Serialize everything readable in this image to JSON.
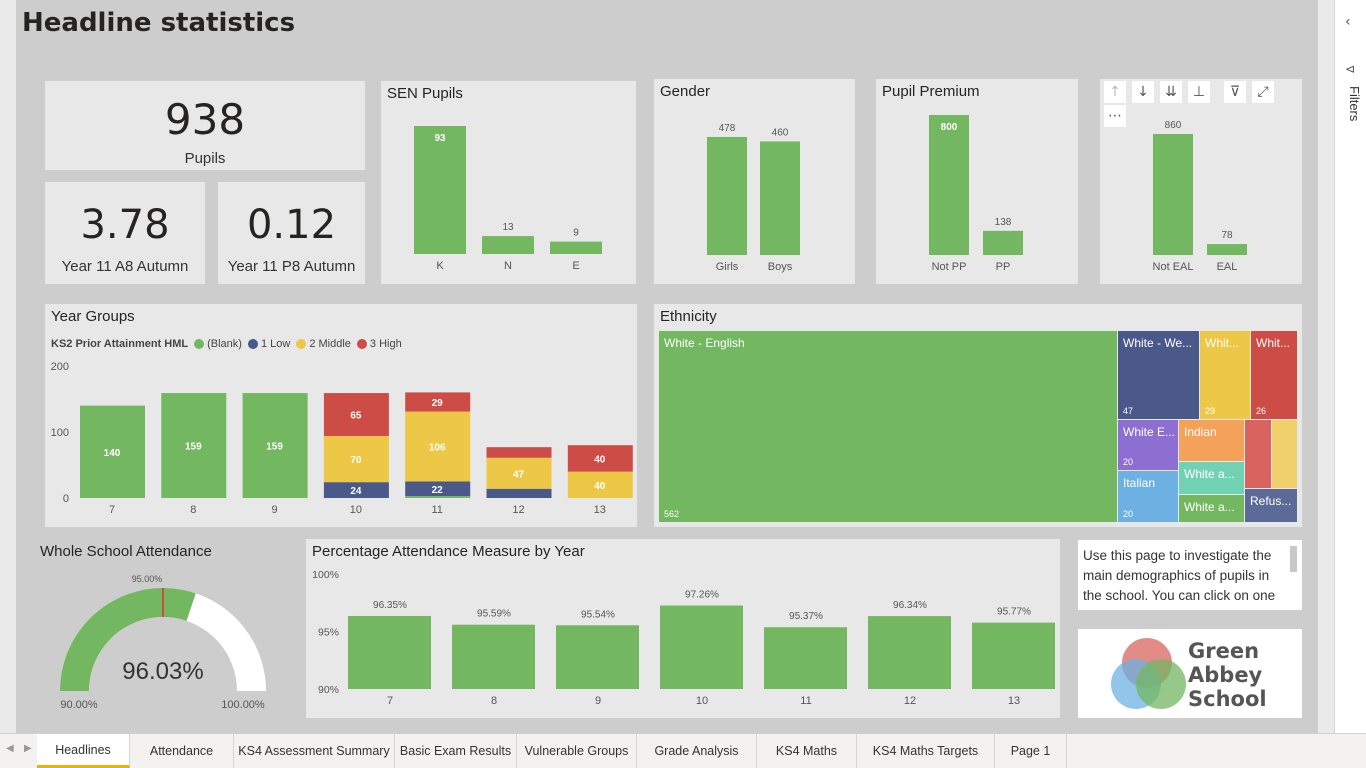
{
  "page": {
    "title": "Headline statistics"
  },
  "kpis": {
    "pupils": {
      "value": "938",
      "label": "Pupils"
    },
    "a8": {
      "value": "3.78",
      "label": "Year 11 A8 Autumn"
    },
    "p8": {
      "value": "0.12",
      "label": "Year 11 P8 Autumn"
    }
  },
  "colors": {
    "green": "#73b761",
    "navy": "#4a588a",
    "yellow": "#ecc846",
    "red": "#cd4c46",
    "purple": "#8d6fd1",
    "orange": "#f4a259",
    "teal": "#71d1b3",
    "blue": "#6cb1e1"
  },
  "sen": {
    "title": "SEN Pupils"
  },
  "gender": {
    "title": "Gender"
  },
  "pupil_premium": {
    "title": "Pupil Premium"
  },
  "eal": {
    "title": "",
    "toolbar_icons": [
      "arrow-up-icon",
      "arrow-down-icon",
      "double-arrow-down-icon",
      "expand-hierarchy-icon",
      "filter-icon",
      "focus-mode-icon",
      "more-options-icon"
    ]
  },
  "year_groups": {
    "title": "Year Groups",
    "legend_title": "KS2 Prior Attainment HML",
    "legend": [
      "(Blank)",
      "1 Low",
      "2 Middle",
      "3 High"
    ]
  },
  "ethnicity": {
    "title": "Ethnicity",
    "cells": [
      {
        "name": "White - English",
        "value": "562",
        "color": "#73b761"
      },
      {
        "name": "White - We...",
        "value": "47",
        "color": "#4a588a"
      },
      {
        "name": "Whit...",
        "value": "29",
        "color": "#ecc846"
      },
      {
        "name": "Whit...",
        "value": "26",
        "color": "#cd4c46"
      },
      {
        "name": "White E...",
        "value": "20",
        "color": "#8d6fd1"
      },
      {
        "name": "Indian",
        "value": "",
        "color": "#f4a259"
      },
      {
        "name": "",
        "value": "",
        "color": "#d9645f"
      },
      {
        "name": "",
        "value": "",
        "color": "#f0d06a"
      },
      {
        "name": "White a...",
        "value": "",
        "color": "#71d1b3"
      },
      {
        "name": "Italian",
        "value": "20",
        "color": "#6cb1e1"
      },
      {
        "name": "White a...",
        "value": "",
        "color": "#73b761"
      },
      {
        "name": "Refus...",
        "value": "",
        "color": "#5c6a98"
      }
    ]
  },
  "attendance_gauge": {
    "title": "Whole School Attendance",
    "value_label": "96.03%",
    "target_label": "95.00%",
    "min_label": "90.00%",
    "max_label": "100.00%"
  },
  "attendance_by_year": {
    "title": "Percentage Attendance Measure by Year"
  },
  "textbox": {
    "text": "Use this page to investigate the main demographics of pupils in the school. You can click on one"
  },
  "logo": {
    "line1": "Green",
    "line2": "Abbey",
    "line3": "School"
  },
  "filters_pane": {
    "label": "Filters",
    "collapse_icon": "chevron-left-icon"
  },
  "tabs": [
    {
      "label": "Headlines",
      "active": true
    },
    {
      "label": "Attendance"
    },
    {
      "label": "KS4 Assessment Summary"
    },
    {
      "label": "Basic Exam Results"
    },
    {
      "label": "Vulnerable Groups"
    },
    {
      "label": "Grade Analysis"
    },
    {
      "label": "KS4 Maths"
    },
    {
      "label": "KS4 Maths Targets"
    },
    {
      "label": "Page 1"
    }
  ],
  "chart_data": [
    {
      "id": "sen",
      "type": "bar",
      "title": "SEN Pupils",
      "categories": [
        "K",
        "N",
        "E"
      ],
      "values": [
        93,
        13,
        9
      ]
    },
    {
      "id": "gender",
      "type": "bar",
      "title": "Gender",
      "categories": [
        "Girls",
        "Boys"
      ],
      "values": [
        478,
        460
      ]
    },
    {
      "id": "pp",
      "type": "bar",
      "title": "Pupil Premium",
      "categories": [
        "Not PP",
        "PP"
      ],
      "values": [
        800,
        138
      ]
    },
    {
      "id": "eal",
      "type": "bar",
      "title": "",
      "categories": [
        "Not EAL",
        "EAL"
      ],
      "values": [
        860,
        78
      ]
    },
    {
      "id": "year_groups",
      "type": "bar",
      "stacked": true,
      "title": "Year Groups",
      "categories": [
        "7",
        "8",
        "9",
        "10",
        "11",
        "12",
        "13"
      ],
      "ylim": [
        0,
        200
      ],
      "yticks": [
        0,
        100,
        200
      ],
      "series": [
        {
          "name": "(Blank)",
          "color": "#73b761",
          "values": [
            140,
            159,
            159,
            0,
            3,
            0,
            0
          ],
          "labels": [
            "140",
            "159",
            "159",
            "",
            "",
            "",
            ""
          ]
        },
        {
          "name": "1 Low",
          "color": "#4a588a",
          "values": [
            0,
            0,
            0,
            24,
            22,
            14,
            0
          ],
          "labels": [
            "",
            "",
            "",
            "24",
            "22",
            "",
            ""
          ]
        },
        {
          "name": "2 Middle",
          "color": "#ecc846",
          "values": [
            0,
            0,
            0,
            70,
            106,
            47,
            40
          ],
          "labels": [
            "",
            "",
            "",
            "70",
            "106",
            "47",
            "40"
          ]
        },
        {
          "name": "3 High",
          "color": "#cd4c46",
          "values": [
            0,
            0,
            0,
            65,
            29,
            16,
            40
          ],
          "labels": [
            "",
            "",
            "",
            "65",
            "29",
            "",
            "40"
          ]
        }
      ]
    },
    {
      "id": "attendance_by_year",
      "type": "bar",
      "title": "Percentage Attendance Measure by Year",
      "categories": [
        "7",
        "8",
        "9",
        "10",
        "11",
        "12",
        "13"
      ],
      "values": [
        96.35,
        95.59,
        95.54,
        97.26,
        95.37,
        96.34,
        95.77
      ],
      "labels": [
        "96.35%",
        "95.59%",
        "95.54%",
        "97.26%",
        "95.37%",
        "96.34%",
        "95.77%"
      ],
      "ylim": [
        90,
        100
      ],
      "yticks": [
        "90%",
        "95%",
        "100%"
      ]
    },
    {
      "id": "gauge",
      "type": "gauge",
      "title": "Whole School Attendance",
      "min": 90,
      "max": 100,
      "value": 96.03,
      "target": 95
    }
  ]
}
